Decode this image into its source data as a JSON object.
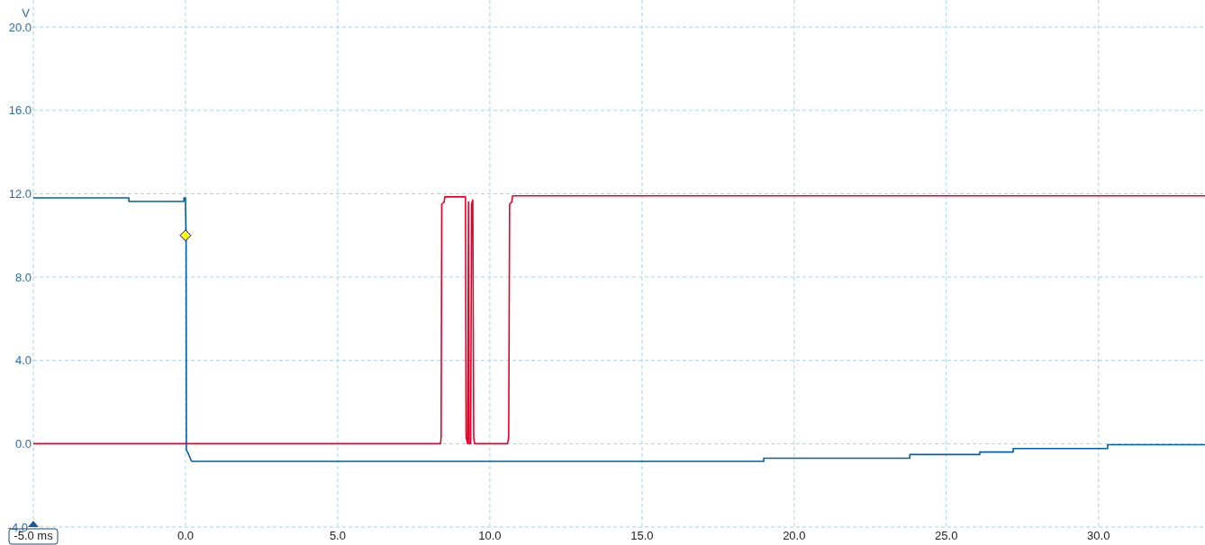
{
  "chart_data": {
    "type": "line",
    "ylabel": "V",
    "xlim": [
      -5,
      33.5
    ],
    "ylim": [
      -4,
      21.3
    ],
    "xticks": [
      {
        "value": -5,
        "label": "-5.0 ms"
      },
      {
        "value": 0,
        "label": "0.0"
      },
      {
        "value": 5,
        "label": "5.0"
      },
      {
        "value": 10,
        "label": "10.0"
      },
      {
        "value": 15,
        "label": "15.0"
      },
      {
        "value": 20,
        "label": "20.0"
      },
      {
        "value": 25,
        "label": "25.0"
      },
      {
        "value": 30,
        "label": "30.0"
      }
    ],
    "yticks": [
      {
        "value": -4,
        "label": "-4.0"
      },
      {
        "value": 0,
        "label": "0.0"
      },
      {
        "value": 4,
        "label": "4.0"
      },
      {
        "value": 8,
        "label": "8.0"
      },
      {
        "value": 12,
        "label": "12.0"
      },
      {
        "value": 16,
        "label": "16.0"
      },
      {
        "value": 20,
        "label": "20.0"
      }
    ],
    "grid": true,
    "line_style": "solid",
    "series": [
      {
        "color": "#0060a8",
        "x": [
          -5,
          -1.86,
          -1.86,
          -0.05,
          -0.05,
          0,
          0,
          0.02,
          0.03,
          0.1,
          0.2,
          19.0,
          19.0,
          23.8,
          23.8,
          26.1,
          26.1,
          27.2,
          27.2,
          30.3,
          30.3,
          33.5
        ],
        "values": [
          11.8,
          11.8,
          11.63,
          11.63,
          11.8,
          11.8,
          11.5,
          10,
          -0.3,
          -0.5,
          -0.85,
          -0.85,
          -0.7,
          -0.7,
          -0.52,
          -0.52,
          -0.4,
          -0.4,
          -0.23,
          -0.23,
          -0.05,
          -0.05
        ]
      },
      {
        "color": "#e8002a",
        "x": [
          -5,
          8.38,
          8.4,
          8.42,
          8.5,
          8.52,
          9.2,
          9.22,
          9.27,
          9.3,
          9.32,
          9.37,
          9.4,
          9.44,
          9.47,
          9.5,
          10.58,
          10.62,
          10.65,
          10.72,
          10.75,
          33.5
        ],
        "values": [
          0,
          0,
          0.3,
          11.5,
          11.6,
          11.85,
          11.85,
          0.3,
          0,
          11.6,
          0,
          0,
          11.5,
          11.7,
          0.3,
          0,
          0,
          0.3,
          11.5,
          11.6,
          11.9,
          11.9
        ]
      },
      {
        "type": "scatter",
        "marker": "diamond",
        "color": "#ffff00",
        "x": [
          0
        ],
        "values": [
          10
        ]
      }
    ]
  }
}
